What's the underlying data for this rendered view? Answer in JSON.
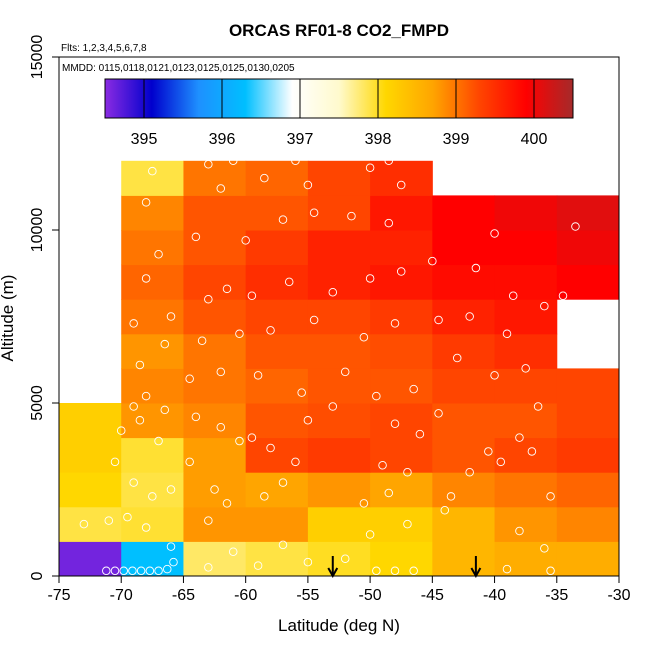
{
  "chart_data": {
    "type": "heatmap",
    "title": "ORCAS RF01-8 CO2_FMPD",
    "flights_label": "Flts: 1,2,3,4,5,6,7,8",
    "dates_label": "MMDD: 0115,0118,0121,0123,0125,0125,0130,0205",
    "xlabel": "Latitude (deg N)",
    "ylabel": "Altitude (m)",
    "xlim": [
      -75,
      -30
    ],
    "ylim": [
      0,
      15000
    ],
    "x_ticks": [
      -75,
      -70,
      -65,
      -60,
      -55,
      -50,
      -45,
      -40,
      -35,
      -30
    ],
    "x_tick_labels": [
      "-75",
      "-70",
      "-65",
      "-60",
      "-55",
      "-50",
      "-45",
      "-40",
      "-35",
      "-30"
    ],
    "y_ticks": [
      0,
      5000,
      10000,
      15000
    ],
    "y_tick_labels": [
      "0",
      "5000",
      "10000",
      "15000"
    ],
    "colorbar": {
      "min": 394.5,
      "max": 400.5,
      "ticks": [
        395,
        396,
        397,
        398,
        399,
        400
      ],
      "tick_labels": [
        "395",
        "396",
        "397",
        "398",
        "399",
        "400"
      ],
      "colors": [
        "#8a2be2",
        "#0000cd",
        "#1e90ff",
        "#00bfff",
        "#ffffff",
        "#fffacd",
        "#ffd700",
        "#ffa500",
        "#ff4500",
        "#ff0000",
        "#a52a2a"
      ]
    },
    "bin_width_deg": 5,
    "bin_height_m": 1000,
    "bin_x_starts": [
      -75,
      -70,
      -65,
      -60,
      -55,
      -50,
      -45,
      -40,
      -35
    ],
    "bin_y_starts": [
      0,
      1000,
      2000,
      3000,
      4000,
      5000,
      6000,
      7000,
      8000,
      9000,
      10000,
      11000
    ],
    "cells": [
      [
        394.6,
        396.3,
        397.8,
        397.9,
        398.0,
        398.1,
        398.5,
        398.6,
        398.6
      ],
      [
        397.9,
        397.95,
        398.8,
        398.8,
        398.2,
        398.2,
        398.5,
        398.8,
        398.9
      ],
      [
        398.1,
        397.9,
        398.75,
        398.7,
        398.8,
        398.7,
        398.9,
        399.0,
        399.1
      ],
      [
        398.2,
        397.95,
        398.75,
        399.3,
        399.4,
        399.3,
        399.2,
        399.3,
        399.4
      ],
      [
        398.2,
        398.8,
        398.9,
        399.2,
        399.25,
        399.3,
        399.2,
        399.2,
        399.3
      ],
      [
        null,
        398.9,
        399.0,
        399.1,
        399.2,
        399.2,
        399.3,
        399.3,
        399.3
      ],
      [
        null,
        398.8,
        399.0,
        399.2,
        399.2,
        399.25,
        399.4,
        399.5,
        null
      ],
      [
        null,
        399.0,
        399.2,
        399.3,
        399.3,
        399.4,
        399.6,
        399.7,
        null
      ],
      [
        null,
        399.1,
        399.3,
        399.5,
        399.6,
        399.7,
        399.8,
        399.8,
        399.9
      ],
      [
        null,
        399.0,
        399.2,
        399.4,
        399.6,
        399.6,
        399.9,
        399.9,
        400.0
      ],
      [
        null,
        398.9,
        399.2,
        399.2,
        399.3,
        399.7,
        399.9,
        400.0,
        400.1
      ],
      [
        null,
        397.9,
        399.0,
        399.1,
        399.3,
        399.5,
        null,
        null,
        null
      ]
    ],
    "markers_latitude": [
      -53,
      -41.5
    ],
    "sample_points": [
      [
        -71.2,
        150
      ],
      [
        -70.5,
        150
      ],
      [
        -69.8,
        150
      ],
      [
        -69.1,
        150
      ],
      [
        -68.4,
        150
      ],
      [
        -67.7,
        150
      ],
      [
        -67.0,
        150
      ],
      [
        -66.3,
        200
      ],
      [
        -65.8,
        400
      ],
      [
        -66.0,
        850
      ],
      [
        -68.0,
        1400
      ],
      [
        -69.5,
        1700
      ],
      [
        -71.0,
        1600
      ],
      [
        -73.0,
        1500
      ],
      [
        -67.5,
        2300
      ],
      [
        -66.0,
        2500
      ],
      [
        -69.0,
        2700
      ],
      [
        -70.5,
        3300
      ],
      [
        -67.0,
        3900
      ],
      [
        -70.0,
        4200
      ],
      [
        -68.5,
        4500
      ],
      [
        -66.5,
        4800
      ],
      [
        -69.0,
        4900
      ],
      [
        -63.0,
        1600
      ],
      [
        -61.5,
        2100
      ],
      [
        -62.5,
        2500
      ],
      [
        -64.5,
        3300
      ],
      [
        -60.5,
        3900
      ],
      [
        -62.0,
        4300
      ],
      [
        -64.0,
        4600
      ],
      [
        -58.5,
        2300
      ],
      [
        -57.0,
        2700
      ],
      [
        -56.0,
        3300
      ],
      [
        -58.0,
        3700
      ],
      [
        -59.5,
        4000
      ],
      [
        -55.0,
        4500
      ],
      [
        -53.0,
        4900
      ],
      [
        -50.5,
        2100
      ],
      [
        -48.5,
        2400
      ],
      [
        -49.0,
        3200
      ],
      [
        -47.0,
        3000
      ],
      [
        -46.0,
        4100
      ],
      [
        -48.0,
        4400
      ],
      [
        -44.5,
        4700
      ],
      [
        -43.5,
        2300
      ],
      [
        -42.0,
        3000
      ],
      [
        -40.5,
        3600
      ],
      [
        -38.0,
        4000
      ],
      [
        -36.5,
        4900
      ],
      [
        -35.5,
        2300
      ],
      [
        -37.0,
        3600
      ],
      [
        -39.5,
        3300
      ],
      [
        -68.0,
        5200
      ],
      [
        -64.5,
        5700
      ],
      [
        -62.0,
        5900
      ],
      [
        -59.0,
        5800
      ],
      [
        -55.5,
        5300
      ],
      [
        -52.0,
        5900
      ],
      [
        -49.5,
        5200
      ],
      [
        -46.5,
        5400
      ],
      [
        -43.0,
        6300
      ],
      [
        -40.0,
        5800
      ],
      [
        -37.5,
        6000
      ],
      [
        -68.5,
        6100
      ],
      [
        -66.5,
        6700
      ],
      [
        -63.5,
        6800
      ],
      [
        -60.5,
        7000
      ],
      [
        -58.0,
        7100
      ],
      [
        -54.5,
        7400
      ],
      [
        -50.5,
        6900
      ],
      [
        -48.0,
        7300
      ],
      [
        -44.5,
        7400
      ],
      [
        -42.0,
        7500
      ],
      [
        -39.0,
        7000
      ],
      [
        -36.0,
        7800
      ],
      [
        -69.0,
        7300
      ],
      [
        -66.0,
        7500
      ],
      [
        -63.0,
        8000
      ],
      [
        -61.5,
        8300
      ],
      [
        -59.5,
        8100
      ],
      [
        -56.5,
        8500
      ],
      [
        -53.0,
        8200
      ],
      [
        -50.0,
        8600
      ],
      [
        -47.5,
        8800
      ],
      [
        -45.0,
        9100
      ],
      [
        -41.5,
        8900
      ],
      [
        -38.5,
        8100
      ],
      [
        -34.5,
        8100
      ],
      [
        -68.0,
        8600
      ],
      [
        -67.0,
        9300
      ],
      [
        -64.0,
        9800
      ],
      [
        -60.0,
        9700
      ],
      [
        -57.0,
        10300
      ],
      [
        -54.5,
        10500
      ],
      [
        -51.5,
        10400
      ],
      [
        -48.5,
        10200
      ],
      [
        -40.0,
        9900
      ],
      [
        -33.5,
        10100
      ],
      [
        -68.0,
        10800
      ],
      [
        -67.5,
        11700
      ],
      [
        -63.0,
        11900
      ],
      [
        -61.0,
        12000
      ],
      [
        -58.5,
        11500
      ],
      [
        -55.0,
        11300
      ],
      [
        -50.0,
        11800
      ],
      [
        -48.5,
        12000
      ],
      [
        -68.5,
        12300
      ],
      [
        -62.0,
        11200
      ],
      [
        -56.0,
        12000
      ],
      [
        -47.5,
        11300
      ],
      [
        -49.5,
        150
      ],
      [
        -48.0,
        150
      ],
      [
        -46.5,
        150
      ],
      [
        -50.0,
        1200
      ],
      [
        -47.0,
        1500
      ],
      [
        -44.0,
        1900
      ],
      [
        -38.0,
        1300
      ],
      [
        -36.0,
        800
      ],
      [
        -52.0,
        500
      ],
      [
        -55.0,
        400
      ],
      [
        -59.0,
        300
      ],
      [
        -63.0,
        250
      ],
      [
        -61.0,
        700
      ],
      [
        -57.0,
        900
      ],
      [
        -39.0,
        200
      ],
      [
        -35.5,
        150
      ]
    ]
  }
}
